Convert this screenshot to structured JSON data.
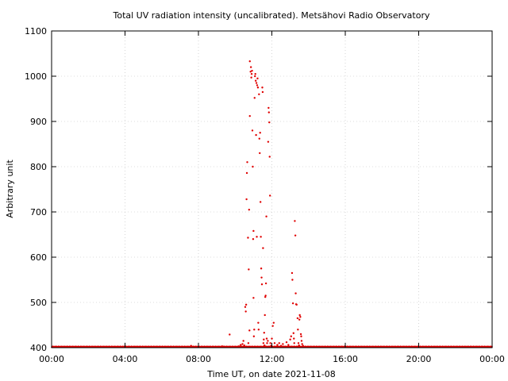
{
  "chart_data": {
    "type": "scatter",
    "title": "Total UV radiation intensity (uncalibrated). Metsähovi Radio Observatory",
    "xlabel": "Time UT, on date 2021-11-08",
    "ylabel": "Arbitrary unit",
    "xlim": [
      0,
      24
    ],
    "ylim": [
      400,
      1100
    ],
    "x_unit": "hours UT",
    "x_ticks": [
      {
        "value": 0,
        "label": "00:00"
      },
      {
        "value": 4,
        "label": "04:00"
      },
      {
        "value": 8,
        "label": "08:00"
      },
      {
        "value": 12,
        "label": "12:00"
      },
      {
        "value": 16,
        "label": "16:00"
      },
      {
        "value": 20,
        "label": "20:00"
      },
      {
        "value": 24,
        "label": "00:00"
      }
    ],
    "y_ticks": [
      {
        "value": 400,
        "label": "400"
      },
      {
        "value": 500,
        "label": "500"
      },
      {
        "value": 600,
        "label": "600"
      },
      {
        "value": 700,
        "label": "700"
      },
      {
        "value": 800,
        "label": "800"
      },
      {
        "value": 900,
        "label": "900"
      },
      {
        "value": 1000,
        "label": "1000"
      },
      {
        "value": 1100,
        "label": "1100"
      }
    ],
    "grid": true,
    "grid_style": "dotted",
    "point_color": "#e00000",
    "baseline": {
      "value": 401,
      "x_range": [
        0,
        24
      ],
      "note_visible": false
    },
    "series": [
      {
        "points": [
          [
            7.6,
            404
          ],
          [
            9.3,
            403
          ],
          [
            9.7,
            429
          ],
          [
            10.2,
            403
          ],
          [
            10.3,
            406
          ],
          [
            10.4,
            408
          ],
          [
            10.45,
            415
          ],
          [
            10.5,
            405
          ],
          [
            10.55,
            490
          ],
          [
            10.58,
            480
          ],
          [
            10.6,
            495
          ],
          [
            10.62,
            728
          ],
          [
            10.64,
            786
          ],
          [
            10.66,
            810
          ],
          [
            10.7,
            643
          ],
          [
            10.72,
            410
          ],
          [
            10.74,
            573
          ],
          [
            10.76,
            705
          ],
          [
            10.78,
            438
          ],
          [
            10.8,
            912
          ],
          [
            10.8,
            1033
          ],
          [
            10.84,
            1010
          ],
          [
            10.86,
            1020
          ],
          [
            10.88,
            997
          ],
          [
            10.9,
            1005
          ],
          [
            10.92,
            1012
          ],
          [
            10.94,
            880
          ],
          [
            10.96,
            800
          ],
          [
            10.98,
            640
          ],
          [
            11.0,
            658
          ],
          [
            11.0,
            510
          ],
          [
            11.02,
            425
          ],
          [
            11.04,
            440
          ],
          [
            11.06,
            952
          ],
          [
            11.08,
            1000
          ],
          [
            11.1,
            1005
          ],
          [
            11.12,
            990
          ],
          [
            11.14,
            870
          ],
          [
            11.16,
            985
          ],
          [
            11.18,
            645
          ],
          [
            11.2,
            980
          ],
          [
            11.22,
            995
          ],
          [
            11.24,
            975
          ],
          [
            11.26,
            455
          ],
          [
            11.28,
            440
          ],
          [
            11.3,
            960
          ],
          [
            11.32,
            862
          ],
          [
            11.34,
            830
          ],
          [
            11.36,
            875
          ],
          [
            11.38,
            722
          ],
          [
            11.4,
            645
          ],
          [
            11.42,
            575
          ],
          [
            11.44,
            555
          ],
          [
            11.46,
            540
          ],
          [
            11.48,
            975
          ],
          [
            11.5,
            965
          ],
          [
            11.52,
            620
          ],
          [
            11.54,
            410
          ],
          [
            11.56,
            418
          ],
          [
            11.58,
            433
          ],
          [
            11.6,
            405
          ],
          [
            11.62,
            472
          ],
          [
            11.64,
            512
          ],
          [
            11.66,
            515
          ],
          [
            11.68,
            542
          ],
          [
            11.7,
            690
          ],
          [
            11.72,
            420
          ],
          [
            11.74,
            410
          ],
          [
            11.78,
            415
          ],
          [
            11.8,
            855
          ],
          [
            11.82,
            930
          ],
          [
            11.84,
            920
          ],
          [
            11.86,
            898
          ],
          [
            11.88,
            822
          ],
          [
            11.9,
            736
          ],
          [
            11.92,
            410
          ],
          [
            11.95,
            404
          ],
          [
            12.0,
            420
          ],
          [
            12.05,
            448
          ],
          [
            12.1,
            455
          ],
          [
            12.15,
            410
          ],
          [
            12.2,
            402
          ],
          [
            12.3,
            406
          ],
          [
            12.4,
            410
          ],
          [
            12.5,
            404
          ],
          [
            12.6,
            408
          ],
          [
            12.7,
            402
          ],
          [
            12.8,
            412
          ],
          [
            12.9,
            406
          ],
          [
            13.0,
            418
          ],
          [
            13.05,
            425
          ],
          [
            13.1,
            565
          ],
          [
            13.12,
            550
          ],
          [
            13.15,
            498
          ],
          [
            13.18,
            432
          ],
          [
            13.2,
            420
          ],
          [
            13.22,
            410
          ],
          [
            13.25,
            680
          ],
          [
            13.28,
            648
          ],
          [
            13.3,
            520
          ],
          [
            13.32,
            496
          ],
          [
            13.35,
            495
          ],
          [
            13.4,
            465
          ],
          [
            13.42,
            440
          ],
          [
            13.45,
            410
          ],
          [
            13.48,
            405
          ],
          [
            13.5,
            462
          ],
          [
            13.52,
            472
          ],
          [
            13.55,
            468
          ],
          [
            13.58,
            430
          ],
          [
            13.6,
            425
          ],
          [
            13.62,
            415
          ],
          [
            13.65,
            408
          ],
          [
            13.7,
            404
          ]
        ]
      }
    ]
  }
}
